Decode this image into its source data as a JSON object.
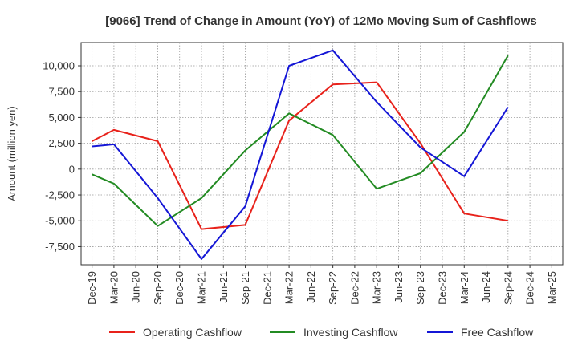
{
  "chart_data": {
    "type": "line",
    "title": "[9066]  Trend of Change in Amount (YoY) of 12Mo Moving Sum of Cashflows",
    "xlabel": "",
    "ylabel": "Amount (million yen)",
    "ylim": [
      -9250,
      12250
    ],
    "yticks": [
      10000,
      7500,
      5000,
      2500,
      0,
      -2500,
      -5000,
      -7500
    ],
    "ytick_labels": [
      "10,000",
      "7,500",
      "5,000",
      "2,500",
      "0",
      "-2,500",
      "-5,000",
      "-7,500"
    ],
    "categories": [
      "Dec-19",
      "Mar-20",
      "Jun-20",
      "Sep-20",
      "Dec-20",
      "Mar-21",
      "Jun-21",
      "Sep-21",
      "Dec-21",
      "Mar-22",
      "Jun-22",
      "Sep-22",
      "Dec-22",
      "Mar-23",
      "Jun-23",
      "Sep-23",
      "Dec-23",
      "Mar-24",
      "Jun-24",
      "Sep-24",
      "Dec-24",
      "Mar-25"
    ],
    "series": [
      {
        "name": "Operating Cashflow",
        "color": "#e8221b",
        "values": [
          2700,
          3800,
          null,
          2700,
          null,
          -5800,
          null,
          -5400,
          null,
          4700,
          null,
          8200,
          null,
          8400,
          null,
          2500,
          null,
          -4300,
          null,
          -5000,
          null,
          null
        ]
      },
      {
        "name": "Investing Cashflow",
        "color": "#238b23",
        "values": [
          -500,
          -1400,
          null,
          -5500,
          null,
          -2800,
          null,
          1800,
          null,
          5400,
          null,
          3300,
          null,
          -1900,
          null,
          -400,
          null,
          3600,
          null,
          11000,
          null,
          null
        ]
      },
      {
        "name": "Free Cashflow",
        "color": "#1416d6",
        "values": [
          2200,
          2400,
          null,
          -2800,
          null,
          -8700,
          null,
          -3600,
          null,
          10000,
          null,
          11500,
          null,
          6500,
          null,
          2100,
          null,
          -700,
          null,
          6000,
          null,
          null
        ]
      }
    ],
    "legend_position": "bottom",
    "grid": true
  }
}
